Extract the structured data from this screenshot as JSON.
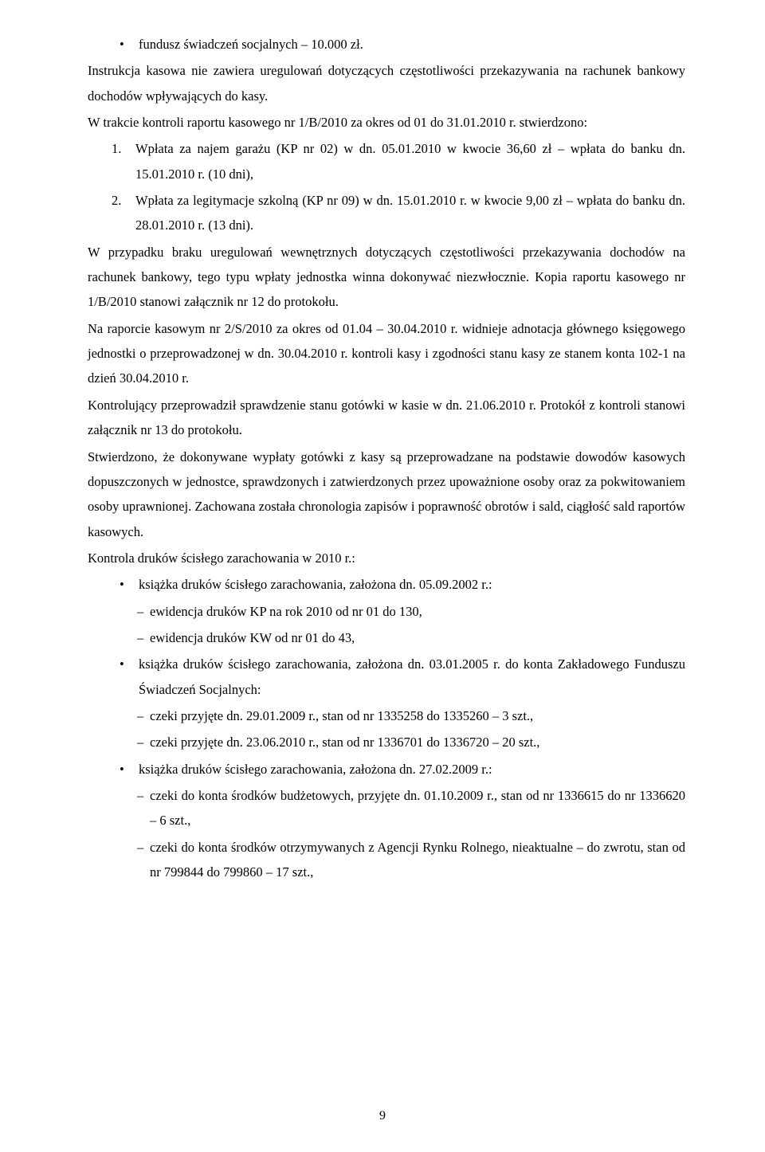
{
  "top_bullet": "fundusz świadczeń socjalnych – 10.000 zł.",
  "p1": "Instrukcja kasowa nie zawiera uregulowań dotyczących częstotliwości przekazywania na rachunek bankowy dochodów wpływających do kasy.",
  "p2": "W trakcie kontroli raportu kasowego nr 1/B/2010 za okres od 01 do 31.01.2010 r. stwierdzono:",
  "num1": "Wpłata za najem garażu (KP nr 02) w dn. 05.01.2010 w kwocie 36,60 zł – wpłata do banku dn. 15.01.2010 r. (10 dni),",
  "num2": "Wpłata za legitymacje szkolną (KP nr 09) w dn. 15.01.2010 r. w kwocie 9,00 zł – wpłata do banku dn. 28.01.2010 r. (13 dni).",
  "p3": "W przypadku braku uregulowań wewnętrznych dotyczących częstotliwości przekazywania dochodów na rachunek bankowy, tego typu wpłaty jednostka winna dokonywać niezwłocznie. Kopia raportu kasowego nr 1/B/2010 stanowi załącznik nr 12 do protokołu.",
  "p4": "Na raporcie kasowym nr 2/S/2010 za okres od 01.04 – 30.04.2010 r. widnieje adnotacja głównego księgowego jednostki o przeprowadzonej w dn. 30.04.2010 r. kontroli kasy i zgodności stanu kasy ze stanem konta 102-1 na dzień 30.04.2010 r.",
  "p5": "Kontrolujący przeprowadził sprawdzenie stanu gotówki w kasie w dn. 21.06.2010 r. Protokół z kontroli stanowi załącznik nr 13 do protokołu.",
  "p6": "Stwierdzono, że dokonywane wypłaty gotówki z kasy są przeprowadzane na podstawie dowodów kasowych dopuszczonych w jednostce, sprawdzonych i zatwierdzonych przez upoważnione osoby oraz za pokwitowaniem osoby uprawnionej. Zachowana została chronologia zapisów i poprawność obrotów i sald, ciągłość sald raportów kasowych.",
  "p7": "Kontrola druków ścisłego zarachowania w 2010 r.:",
  "b1": "książka druków ścisłego zarachowania, założona dn. 05.09.2002 r.:",
  "b1d1": "ewidencja druków KP na rok 2010 od nr 01 do 130,",
  "b1d2": "ewidencja druków KW od nr 01 do 43,",
  "b2": "książka druków ścisłego zarachowania, założona dn. 03.01.2005 r. do konta Zakładowego Funduszu Świadczeń Socjalnych:",
  "b2d1": "czeki przyjęte dn. 29.01.2009 r., stan od nr 1335258 do 1335260 – 3 szt.,",
  "b2d2": "czeki przyjęte dn. 23.06.2010 r., stan od nr 1336701 do 1336720 – 20 szt.,",
  "b3": "książka druków ścisłego zarachowania, założona dn. 27.02.2009 r.:",
  "b3d1": "czeki do konta środków budżetowych, przyjęte dn. 01.10.2009 r., stan od nr 1336615 do nr 1336620 – 6 szt.,",
  "b3d2": "czeki do konta środków otrzymywanych z Agencji Rynku Rolnego, nieaktualne – do zwrotu, stan od nr 799844 do 799860 – 17 szt.,",
  "page_number": "9",
  "bullet": "•",
  "dash": "–",
  "n1": "1.",
  "n2": "2."
}
